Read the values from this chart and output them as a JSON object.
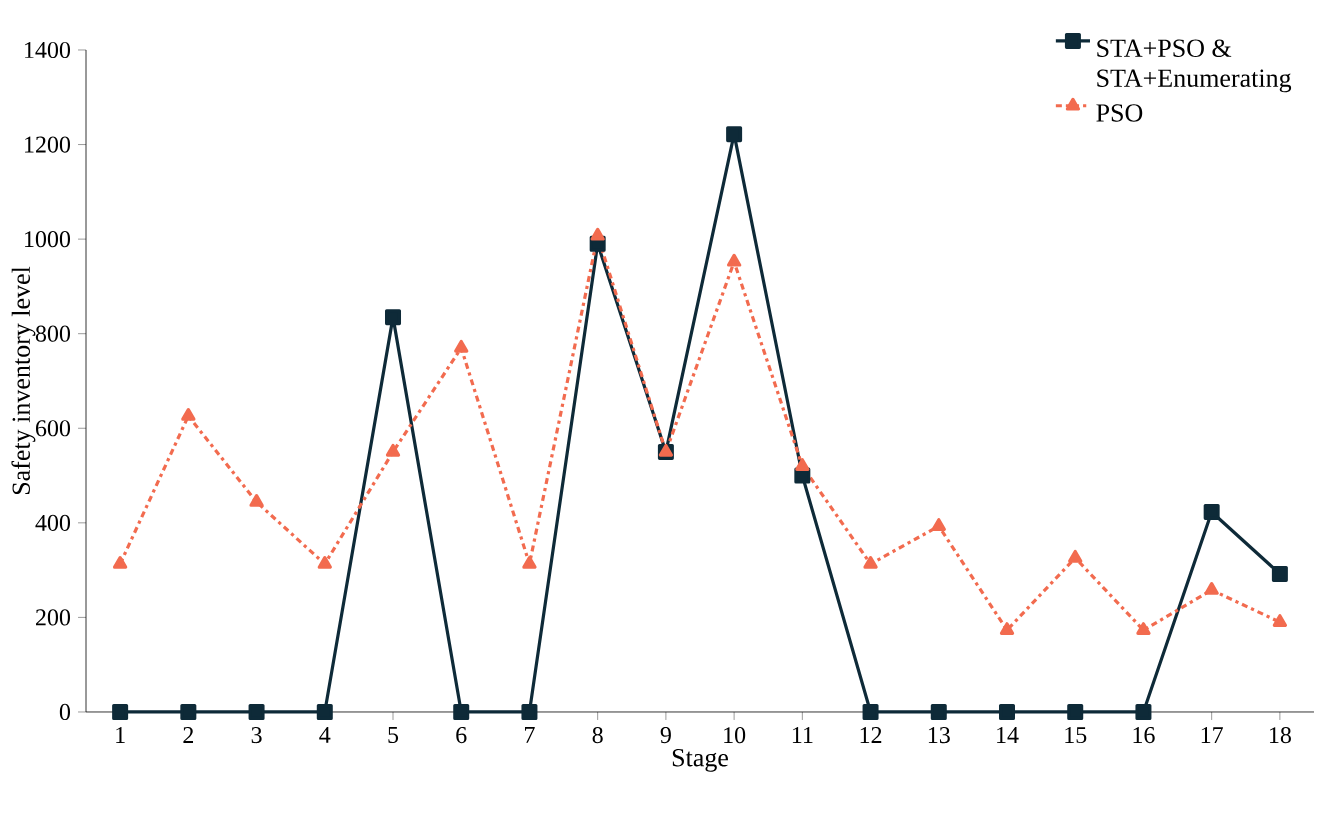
{
  "chart_data": {
    "type": "line",
    "xlabel": "Stage",
    "ylabel": "Safety inventory level",
    "categories": [
      "1",
      "2",
      "3",
      "4",
      "5",
      "6",
      "7",
      "8",
      "9",
      "10",
      "11",
      "12",
      "13",
      "14",
      "15",
      "16",
      "17",
      "18"
    ],
    "series": [
      {
        "name": "STA+PSO & STA+Enumerating",
        "color": "#0e2a38",
        "marker": "square",
        "line_style": "solid",
        "values": [
          0,
          0,
          0,
          0,
          835,
          0,
          0,
          990,
          550,
          1222,
          500,
          0,
          0,
          0,
          0,
          0,
          423,
          292
        ]
      },
      {
        "name": "PSO",
        "color": "#f26b4f",
        "marker": "triangle",
        "line_style": "dashdot",
        "values": [
          313,
          626,
          444,
          313,
          550,
          770,
          313,
          1007,
          550,
          952,
          520,
          313,
          393,
          173,
          326,
          173,
          258,
          190
        ]
      }
    ],
    "ylim": [
      0,
      1400
    ],
    "yticks": [
      0,
      200,
      400,
      600,
      800,
      1000,
      1200,
      1400
    ],
    "grid": false,
    "legend": "top right"
  }
}
